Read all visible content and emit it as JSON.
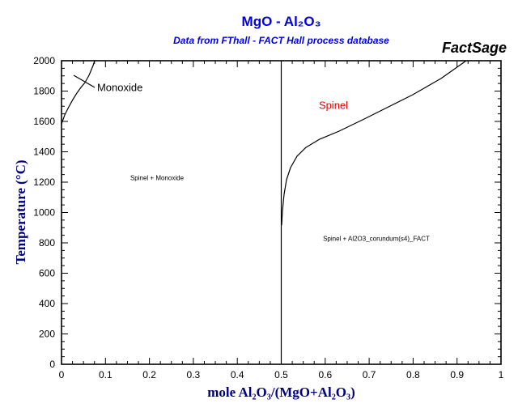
{
  "header": {
    "title": "MgO - Al₂O₃",
    "subtitle": "Data from FThall - FACT Hall process database",
    "logo": "FactSage"
  },
  "colors": {
    "title_blue": "#0000e6",
    "axis_label_navy": "#00007d",
    "spinel_red": "#e60000",
    "line_black": "#000000",
    "background": "#ffffff"
  },
  "chart_data": {
    "type": "line",
    "title": "MgO - Al2O3",
    "subtitle": "Data from FThall - FACT Hall process database",
    "xlabel": "mole Al₂O₃/(MgO+Al₂O₃)",
    "ylabel": "Temperature (°C)",
    "xlim": [
      0,
      1
    ],
    "ylim": [
      0,
      2000
    ],
    "grid": false,
    "x_major_step": 0.1,
    "x_minor_step": 0.025,
    "y_major_step": 200,
    "y_minor_step": 50,
    "x_tick_labels": [
      "0",
      "0.1",
      "0.2",
      "0.3",
      "0.4",
      "0.5",
      "0.6",
      "0.7",
      "0.8",
      "0.9",
      "1"
    ],
    "y_tick_labels": [
      "0",
      "200",
      "400",
      "600",
      "800",
      "1000",
      "1200",
      "1400",
      "1600",
      "1800",
      "2000"
    ],
    "series": [
      {
        "name": "monoxide-phase-boundary",
        "x": [
          0.0,
          0.0074,
          0.0166,
          0.0258,
          0.035,
          0.0442,
          0.0534,
          0.0626,
          0.0718,
          0.0755
        ],
        "y": [
          1584,
          1643,
          1696,
          1744,
          1787,
          1824,
          1856,
          1904,
          1968,
          2000
        ]
      },
      {
        "name": "spinel-stoichiometry-line",
        "x": [
          0.5,
          0.5
        ],
        "y": [
          0,
          2000
        ]
      },
      {
        "name": "spinel-liquidus",
        "x": [
          0.5009,
          0.5028,
          0.5064,
          0.512,
          0.5212,
          0.5359,
          0.5562,
          0.5875,
          0.6317,
          0.6887,
          0.744,
          0.7993,
          0.8637,
          0.9208
        ],
        "y": [
          917,
          1013,
          1120,
          1216,
          1296,
          1371,
          1429,
          1483,
          1536,
          1616,
          1696,
          1776,
          1883,
          2000
        ]
      }
    ],
    "annotations": [
      {
        "name": "label-monoxide",
        "text": "Monoxide",
        "x": 0.081,
        "y": 1824,
        "color": "#000000",
        "size": 13,
        "anchor": "start",
        "leader": {
          "x1": 0.0276,
          "y1": 1904,
          "x2": 0.0755,
          "y2": 1824
        }
      },
      {
        "name": "label-spinel",
        "text": "Spinel",
        "x": 0.6188,
        "y": 1707,
        "color": "#e60000",
        "size": 13,
        "anchor": "middle"
      },
      {
        "name": "label-spinel-plus-monoxide",
        "text": "Spinel + Monoxide",
        "x": 0.2173,
        "y": 1227,
        "color": "#000000",
        "size": 8,
        "anchor": "middle"
      },
      {
        "name": "label-spinel-plus-corundum",
        "text": "Spinel + Al2O3_corundum(s4)_FACT",
        "x": 0.7164,
        "y": 827,
        "color": "#000000",
        "size": 8,
        "anchor": "middle"
      }
    ]
  }
}
